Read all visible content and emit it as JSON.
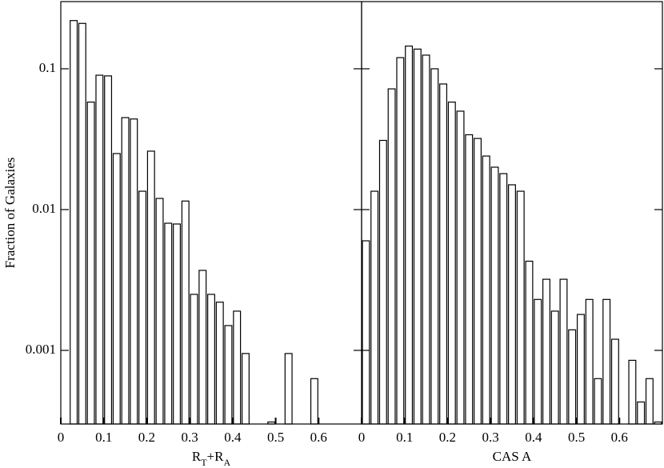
{
  "chart_data": [
    {
      "type": "histogram",
      "ylabel": "Fraction of Galaxies",
      "xlabel_parts": [
        "R",
        "T",
        "+R",
        "A"
      ],
      "log_y": true,
      "color": "#ffffff",
      "edgecolor": "#000000",
      "bins": [
        0.02,
        0.04,
        0.06,
        0.08,
        0.1,
        0.12,
        0.14,
        0.16,
        0.18,
        0.2,
        0.22,
        0.24,
        0.26,
        0.28,
        0.3,
        0.32,
        0.34,
        0.36,
        0.38,
        0.4,
        0.42,
        0.44,
        0.46,
        0.48,
        0.5,
        0.52,
        0.54,
        0.56,
        0.58,
        0.6
      ],
      "values": [
        0.22,
        0.21,
        0.058,
        0.09,
        0.089,
        0.025,
        0.045,
        0.044,
        0.0135,
        0.026,
        0.012,
        0.008,
        0.0079,
        0.0115,
        0.0025,
        0.0037,
        0.0025,
        0.0022,
        0.0015,
        0.0019,
        0.00095,
        null,
        0.0003,
        0.00031,
        null,
        0.00095,
        null,
        null,
        0.00063
      ],
      "xlim": [
        0,
        0.7
      ],
      "xticks": [
        0,
        0.1,
        0.2,
        0.3,
        0.4,
        0.5,
        0.6
      ],
      "ylim": [
        0.0003,
        0.3
      ],
      "yticks": [
        0.1,
        0.01,
        0.001
      ]
    },
    {
      "type": "histogram",
      "xlabel_parts": [
        "CAS A"
      ],
      "log_y": true,
      "color": "#ffffff",
      "edgecolor": "#000000",
      "bins": [
        0,
        0.02,
        0.04,
        0.06,
        0.08,
        0.1,
        0.12,
        0.14,
        0.16,
        0.18,
        0.2,
        0.22,
        0.24,
        0.26,
        0.28,
        0.3,
        0.32,
        0.34,
        0.36,
        0.38,
        0.4,
        0.42,
        0.44,
        0.46,
        0.48,
        0.5,
        0.52,
        0.54,
        0.56,
        0.58,
        0.6,
        0.62,
        0.64,
        0.66,
        0.68,
        0.7
      ],
      "values": [
        0.006,
        0.0135,
        0.031,
        0.072,
        0.12,
        0.145,
        0.138,
        0.125,
        0.1,
        0.078,
        0.058,
        0.05,
        0.034,
        0.032,
        0.024,
        0.02,
        0.018,
        0.015,
        0.0135,
        0.0043,
        0.0023,
        0.0032,
        0.0019,
        0.0032,
        0.0014,
        0.0018,
        0.0023,
        0.00063,
        0.0023,
        0.0012,
        0.0003,
        0.00085,
        0.00043,
        0.00063,
        0.00031
      ],
      "xlim": [
        0,
        0.7
      ],
      "xticks": [
        0,
        0.1,
        0.2,
        0.3,
        0.4,
        0.5,
        0.6
      ],
      "ylim": [
        0.0003,
        0.3
      ]
    }
  ]
}
